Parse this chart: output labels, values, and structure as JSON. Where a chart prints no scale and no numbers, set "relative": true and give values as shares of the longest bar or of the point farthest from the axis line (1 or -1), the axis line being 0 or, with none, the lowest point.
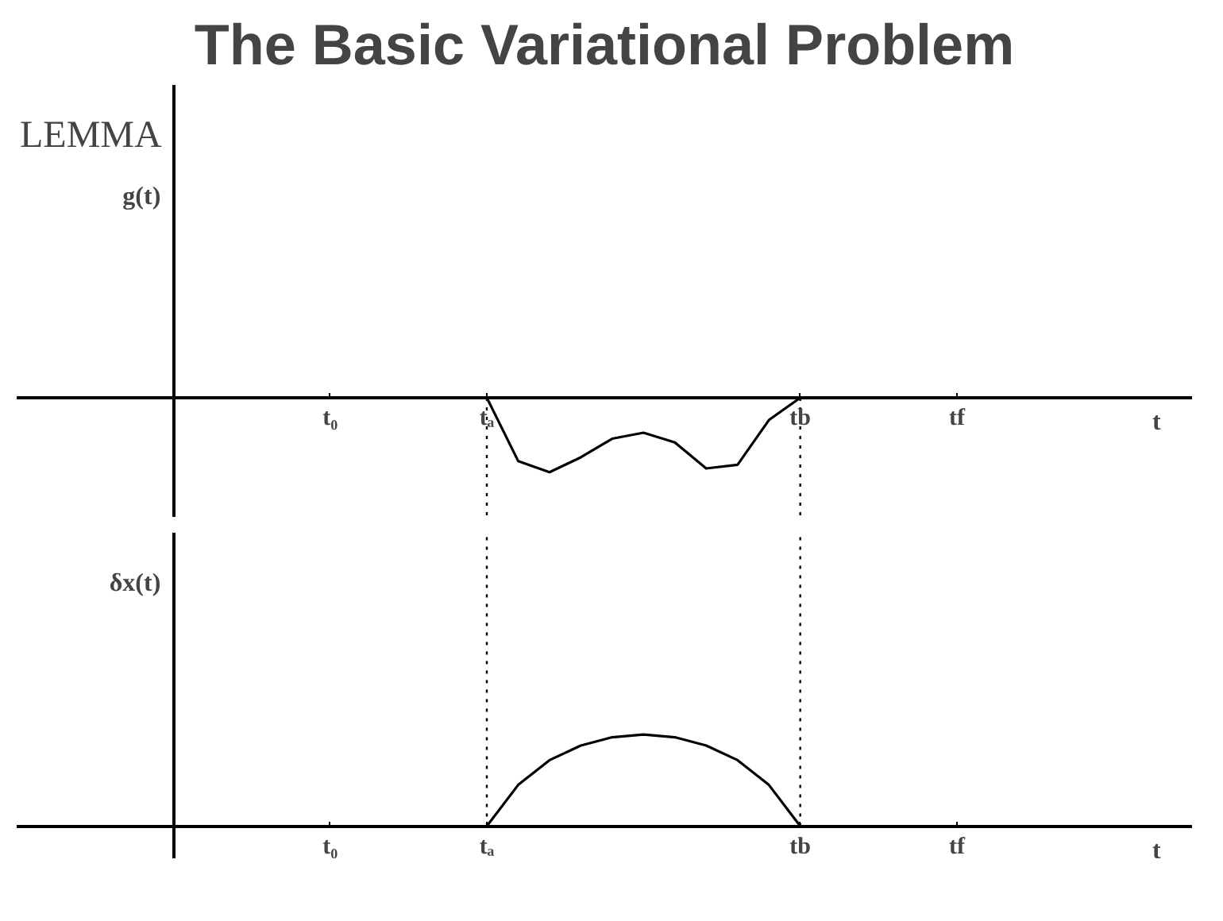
{
  "chart_data": [
    {
      "type": "line",
      "title": "The Basic Variational Problem",
      "subtitle": "LEMMA",
      "ylabel": "g(t)",
      "xlabel": "t",
      "relative": true,
      "categories": [
        null,
        null,
        null,
        null,
        null,
        "t₀",
        null,
        null,
        null,
        null,
        "tₐ",
        null,
        null,
        null,
        null,
        null,
        null,
        null,
        null,
        null,
        "tb",
        null,
        null,
        null,
        null,
        "tf",
        null,
        null,
        null,
        null,
        null,
        null
      ],
      "values": [
        null,
        null,
        null,
        null,
        null,
        null,
        null,
        null,
        null,
        null,
        0,
        -0.85,
        -1,
        -0.8,
        -0.55,
        -0.47,
        -0.6,
        -0.95,
        -0.9,
        -0.3,
        0,
        null,
        null,
        null,
        null,
        null,
        null,
        null,
        null,
        null,
        null,
        null
      ],
      "color": "#000000",
      "ref_lines": [
        {
          "axis": "x",
          "value": "tₐ",
          "line_style": "dotted"
        },
        {
          "axis": "x",
          "value": "tb",
          "line_style": "dotted"
        }
      ]
    },
    {
      "type": "line",
      "ylabel": "δx(t)",
      "xlabel": "t",
      "relative": true,
      "categories": [
        null,
        null,
        null,
        null,
        null,
        "t₀",
        null,
        null,
        null,
        null,
        "tₐ",
        null,
        null,
        null,
        null,
        null,
        null,
        null,
        null,
        null,
        "tb",
        null,
        null,
        null,
        null,
        "tf",
        null,
        null,
        null,
        null,
        null,
        null
      ],
      "values": [
        null,
        null,
        null,
        null,
        null,
        null,
        null,
        null,
        null,
        null,
        0,
        0.45,
        0.72,
        0.88,
        0.97,
        1,
        0.97,
        0.88,
        0.72,
        0.45,
        0,
        null,
        null,
        null,
        null,
        null,
        null,
        null,
        null,
        null,
        null,
        null
      ],
      "color": "#000000",
      "ref_lines": [
        {
          "axis": "x",
          "value": "tₐ",
          "line_style": "dotted"
        },
        {
          "axis": "x",
          "value": "tb",
          "line_style": "dotted"
        }
      ]
    }
  ]
}
